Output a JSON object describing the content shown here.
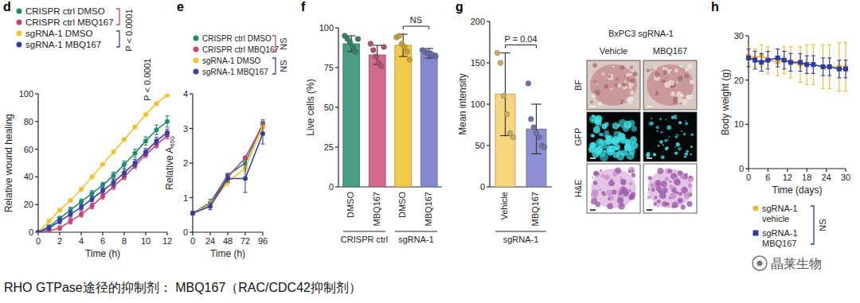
{
  "chart_data": [
    {
      "type": "line",
      "title": "d",
      "x_label": "Time (h)",
      "y_label": "Relative wound healing",
      "x": [
        0,
        1,
        2,
        3,
        4,
        5,
        6,
        7,
        8,
        9,
        10,
        11,
        12
      ],
      "xlim": [
        0,
        12
      ],
      "ylim": [
        0,
        100
      ],
      "xticks": [
        0,
        2,
        4,
        6,
        8,
        10,
        12
      ],
      "yticks": [
        0,
        20,
        40,
        60,
        80,
        100
      ],
      "legend": "upper left",
      "series": [
        {
          "name": "CRISPR ctrl DMSO",
          "color": "#1f8a6e",
          "marker": "circle",
          "values": [
            0,
            4,
            10,
            16,
            22,
            28,
            34,
            41,
            49,
            57,
            66,
            74,
            80
          ],
          "errors": [
            0,
            1,
            1.5,
            2,
            2,
            2,
            2,
            2.5,
            2.5,
            3,
            3,
            3.5,
            4
          ]
        },
        {
          "name": "CRISPR ctrl MBQ167",
          "color": "#c2447a",
          "marker": "circle",
          "values": [
            0,
            1,
            3,
            8,
            13,
            19,
            26,
            33,
            40,
            48,
            56,
            63,
            70
          ],
          "errors": [
            0,
            1,
            1.5,
            2,
            2,
            2,
            2,
            2,
            2,
            2,
            2,
            2,
            2.5
          ]
        },
        {
          "name": "sgRNA-1 DMSO",
          "color": "#f2c12e",
          "marker": "circle",
          "values": [
            0,
            8,
            16,
            23,
            31,
            40,
            49,
            58,
            67,
            76,
            85,
            93,
            99
          ],
          "errors": [
            0,
            1,
            1,
            1,
            1,
            1,
            1,
            1,
            1,
            1,
            1,
            1,
            1
          ]
        },
        {
          "name": "sgRNA-1 MBQ167",
          "color": "#3a3f9e",
          "marker": "circle",
          "values": [
            0,
            3,
            8,
            13,
            18,
            24,
            30,
            36,
            43,
            50,
            58,
            66,
            72
          ],
          "errors": [
            0,
            1.5,
            2,
            2,
            2,
            2,
            2,
            2.5,
            2.5,
            2.5,
            2.5,
            2.5,
            2.5
          ]
        }
      ],
      "comparisons": [
        {
          "series": [
            "CRISPR ctrl DMSO",
            "CRISPR ctrl MBQ167"
          ],
          "label": "P < 0.0001"
        },
        {
          "series": [
            "sgRNA-1 DMSO",
            "sgRNA-1 MBQ167"
          ],
          "label": "P < 0.0001"
        }
      ]
    },
    {
      "type": "line",
      "title": "e",
      "x_label": "Time (h)",
      "y_label": {
        "text": "Relative A",
        "subscript": "650"
      },
      "x": [
        0,
        24,
        48,
        72,
        96
      ],
      "xlim": [
        0,
        96
      ],
      "ylim": [
        0,
        4
      ],
      "xticks": [
        0,
        24,
        48,
        72,
        96
      ],
      "yticks": [
        0,
        1,
        2,
        3,
        4
      ],
      "legend": "upper left",
      "series": [
        {
          "name": "CRISPR ctrl DMSO",
          "color": "#1f8a6e",
          "marker": "circle",
          "values": [
            0.55,
            0.85,
            1.65,
            2.0,
            3.15
          ],
          "errors": [
            0.05,
            0.1,
            0.05,
            0.1,
            0.1
          ]
        },
        {
          "name": "CRISPR ctrl MBQ167",
          "color": "#c2447a",
          "marker": "circle",
          "values": [
            0.55,
            0.8,
            1.6,
            2.15,
            3.1
          ],
          "errors": [
            0.05,
            0.05,
            0.05,
            0.05,
            0.1
          ]
        },
        {
          "name": "sgRNA-1 DMSO",
          "color": "#f2c12e",
          "marker": "circle",
          "values": [
            0.55,
            0.8,
            1.45,
            1.85,
            3.05
          ],
          "errors": [
            0.05,
            0.1,
            0.1,
            0.1,
            0.1
          ]
        },
        {
          "name": "sgRNA-1 MBQ167",
          "color": "#3a3f9e",
          "marker": "circle",
          "values": [
            0.55,
            0.75,
            1.55,
            1.55,
            2.85
          ],
          "errors": [
            0.05,
            0.1,
            0.1,
            0.4,
            0.3
          ]
        }
      ],
      "comparisons": [
        {
          "series": [
            "CRISPR ctrl DMSO",
            "CRISPR ctrl MBQ167"
          ],
          "label": "NS"
        },
        {
          "series": [
            "sgRNA-1 DMSO",
            "sgRNA-1 MBQ167"
          ],
          "label": "NS"
        }
      ]
    },
    {
      "type": "bar",
      "title": "f",
      "y_label": "Live cells (%)",
      "categories": [
        "DMSO",
        "MBQ167",
        "DMSO",
        "MBQ167"
      ],
      "values": [
        90,
        83,
        89,
        84
      ],
      "errors": [
        5,
        6,
        7,
        3
      ],
      "points": [
        [
          95,
          93,
          91,
          88,
          85,
          93
        ],
        [
          90,
          86,
          82,
          78,
          76,
          88
        ],
        [
          94,
          95,
          90,
          88,
          85,
          80
        ],
        [
          86,
          85,
          84,
          84,
          83,
          82
        ]
      ],
      "colors": [
        "#4a9d84",
        "#d26a8e",
        "#f3c84b",
        "#8388d0"
      ],
      "ylim": [
        0,
        100
      ],
      "yticks": [
        0,
        25,
        50,
        75,
        100
      ],
      "groups": [
        {
          "label": "CRISPR ctrl",
          "size": 2
        },
        {
          "label": "sgRNA-1",
          "size": 2
        }
      ],
      "comparisons": [
        {
          "categories": [
            2,
            3
          ],
          "label": "NS"
        }
      ]
    },
    {
      "type": "bar",
      "title": "g",
      "y_label": "Mean intensity",
      "categories": [
        "Vehicle",
        "MBQ167"
      ],
      "values": [
        112,
        70
      ],
      "errors": [
        50,
        30
      ],
      "points": [
        [
          162,
          150,
          110,
          88,
          65,
          60
        ],
        [
          125,
          82,
          72,
          65,
          60,
          50,
          48
        ]
      ],
      "colors": [
        "#f6d67e",
        "#8c90d2"
      ],
      "ylim": [
        0,
        200
      ],
      "yticks": [
        0,
        50,
        100,
        150,
        200
      ],
      "groups": [
        {
          "label": "sgRNA-1",
          "size": 2
        }
      ],
      "comparisons": [
        {
          "categories": [
            0,
            1
          ],
          "label": "P = 0.04"
        }
      ]
    },
    {
      "type": "line",
      "title": "h",
      "x_label": "Time (days)",
      "y_label": "Body weight (g)",
      "x": [
        0,
        2,
        4,
        6,
        9,
        11,
        13,
        16,
        18,
        20,
        23,
        25,
        28,
        30
      ],
      "xlim": [
        0,
        30
      ],
      "ylim": [
        0,
        30
      ],
      "xticks": [
        0,
        6,
        12,
        18,
        24,
        30
      ],
      "yticks": [
        0,
        10,
        20,
        30
      ],
      "legend": "lower right",
      "series": [
        {
          "name": "sgRNA-1 vehicle",
          "color": "#e8b830",
          "marker": "circle",
          "values": [
            25.5,
            25,
            25.5,
            24.5,
            24,
            24.5,
            24,
            23.5,
            23.5,
            23.5,
            23,
            23,
            23,
            23
          ],
          "errors": [
            2,
            2,
            2.5,
            3,
            3,
            3,
            3.5,
            4,
            4.5,
            4.5,
            5,
            5,
            5.5,
            5.5
          ]
        },
        {
          "name": "sgRNA-1 MBQ167",
          "color": "#2e3a9e",
          "marker": "square",
          "values": [
            25,
            24.5,
            24,
            24.5,
            25,
            24.5,
            24,
            24,
            23.5,
            23.5,
            23,
            23,
            22.5,
            22.5
          ],
          "errors": [
            2,
            2,
            2,
            2,
            2,
            2,
            2,
            2,
            2,
            2,
            2,
            2,
            2,
            2
          ]
        }
      ],
      "comparisons": [
        {
          "series": [
            "sgRNA-1 vehicle",
            "sgRNA-1 MBQ167"
          ],
          "label": "NS"
        }
      ]
    }
  ],
  "images": {
    "title": "BxPC3 sgRNA-1",
    "columns": [
      "Vehicle",
      "MBQ167"
    ],
    "rows": [
      "BF",
      "GFP",
      "H&E"
    ]
  },
  "caption": "RHO GTPase途径的抑制剂： MBQ167（RAC/CDC42抑制剂）",
  "watermark": "晶莱生物"
}
